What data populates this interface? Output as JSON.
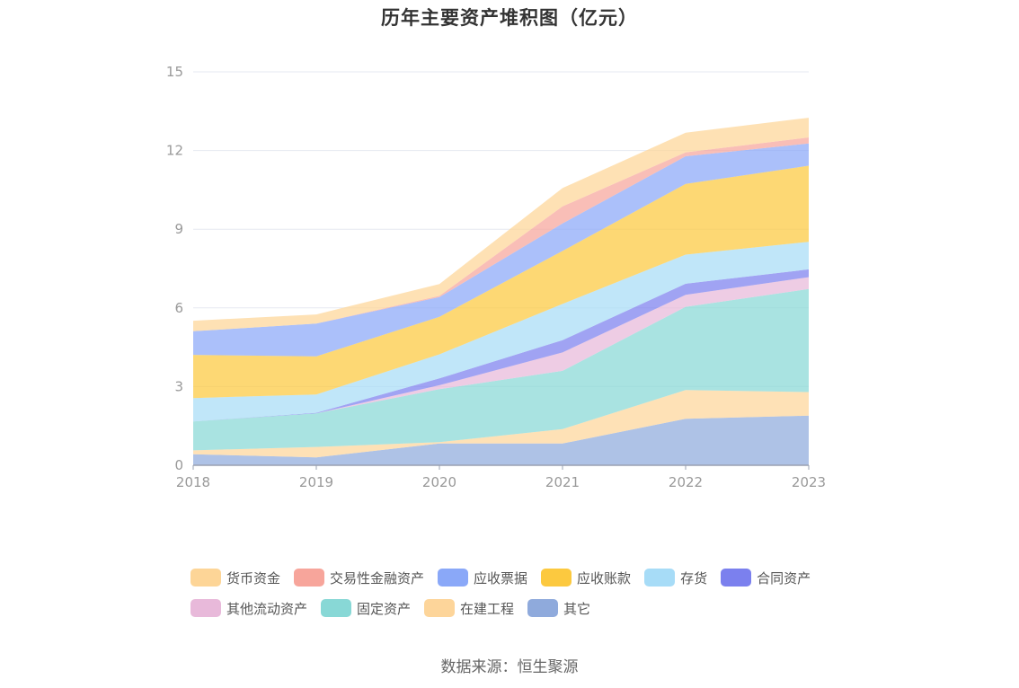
{
  "chart_data": {
    "type": "area",
    "stacked": true,
    "title": "历年主要资产堆积图（亿元）",
    "x": [
      "2018",
      "2019",
      "2020",
      "2021",
      "2022",
      "2023"
    ],
    "ylim": [
      0,
      15
    ],
    "yticks": [
      0,
      3,
      6,
      9,
      12,
      15
    ],
    "grid": true,
    "legend_position": "bottom",
    "series": [
      {
        "name": "其它",
        "color": "#8faadc",
        "values": [
          0.42,
          0.3,
          0.83,
          0.83,
          1.77,
          1.89
        ]
      },
      {
        "name": "在建工程",
        "color": "#fdd59a",
        "values": [
          0.15,
          0.4,
          0.05,
          0.55,
          1.1,
          0.9
        ]
      },
      {
        "name": "固定资产",
        "color": "#88d8d6",
        "values": [
          1.1,
          1.28,
          2.02,
          2.22,
          3.17,
          3.93
        ]
      },
      {
        "name": "其他流动资产",
        "color": "#e8b9da",
        "values": [
          0.0,
          0.0,
          0.15,
          0.7,
          0.46,
          0.45
        ]
      },
      {
        "name": "合同资产",
        "color": "#7b80ee",
        "values": [
          0.0,
          0.02,
          0.26,
          0.47,
          0.42,
          0.3
        ]
      },
      {
        "name": "存货",
        "color": "#a7dcf7",
        "values": [
          0.89,
          0.7,
          0.92,
          1.38,
          1.11,
          1.05
        ]
      },
      {
        "name": "应收账款",
        "color": "#fcc93f",
        "values": [
          1.65,
          1.45,
          1.43,
          2.02,
          2.7,
          2.9
        ]
      },
      {
        "name": "应收票据",
        "color": "#8aa8f8",
        "values": [
          0.9,
          1.25,
          0.75,
          1.05,
          1.05,
          0.85
        ]
      },
      {
        "name": "交易性金融资产",
        "color": "#f7a59b",
        "values": [
          0.0,
          0.0,
          0.05,
          0.65,
          0.15,
          0.23
        ]
      },
      {
        "name": "货币资金",
        "color": "#fdd597",
        "values": [
          0.4,
          0.35,
          0.45,
          0.7,
          0.75,
          0.75
        ]
      }
    ]
  },
  "legend": [
    {
      "label": "货币资金",
      "color": "#fdd597"
    },
    {
      "label": "交易性金融资产",
      "color": "#f7a59b"
    },
    {
      "label": "应收票据",
      "color": "#8aa8f8"
    },
    {
      "label": "应收账款",
      "color": "#fcc93f"
    },
    {
      "label": "存货",
      "color": "#a7dcf7"
    },
    {
      "label": "合同资产",
      "color": "#7b80ee"
    },
    {
      "label": "其他流动资产",
      "color": "#e8b9da"
    },
    {
      "label": "固定资产",
      "color": "#88d8d6"
    },
    {
      "label": "在建工程",
      "color": "#fdd59a"
    },
    {
      "label": "其它",
      "color": "#8faadc"
    }
  ],
  "source": "数据来源：恒生聚源"
}
